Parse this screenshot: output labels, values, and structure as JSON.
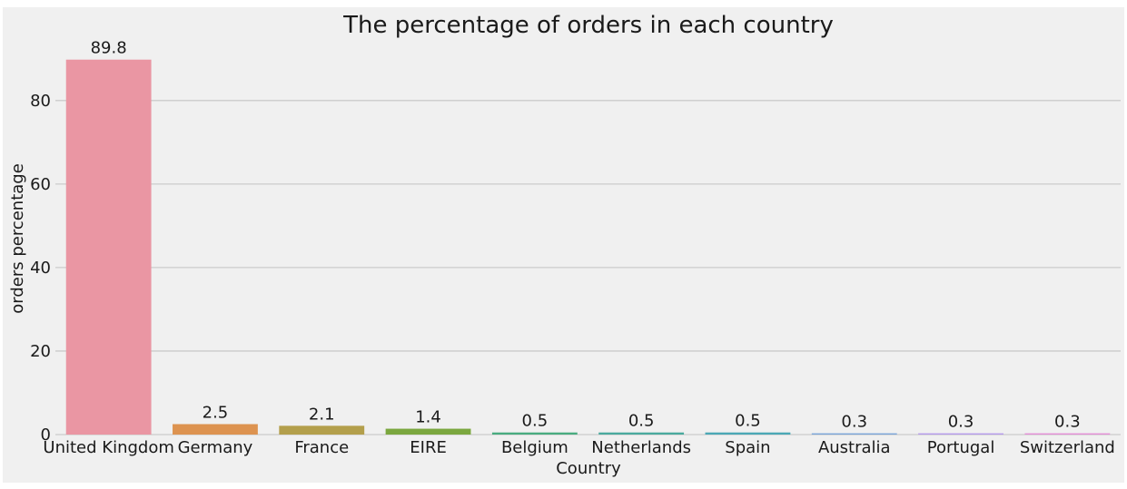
{
  "chart_data": {
    "type": "bar",
    "title": "The percentage of orders in each country",
    "xlabel": "Country",
    "ylabel": "orders percentage",
    "categories": [
      "United Kingdom",
      "Germany",
      "France",
      "EIRE",
      "Belgium",
      "Netherlands",
      "Spain",
      "Australia",
      "Portugal",
      "Switzerland"
    ],
    "values": [
      89.8,
      2.5,
      2.1,
      1.4,
      0.5,
      0.5,
      0.5,
      0.3,
      0.3,
      0.3
    ],
    "data_labels": [
      "89.8",
      "2.5",
      "2.1",
      "1.4",
      "0.5",
      "0.5",
      "0.5",
      "0.3",
      "0.3",
      "0.3"
    ],
    "colors": [
      "#ea96a3",
      "#dd9350",
      "#b39f4c",
      "#7ba73f",
      "#49ab7f",
      "#4aa99e",
      "#4ba8b5",
      "#7aa4d8",
      "#b59aeb",
      "#e38ed6"
    ],
    "yticks": [
      0,
      20,
      40,
      60,
      80
    ],
    "ylim": [
      0,
      94.3
    ],
    "grid": "horizontal",
    "background": "#f0f0f0"
  }
}
